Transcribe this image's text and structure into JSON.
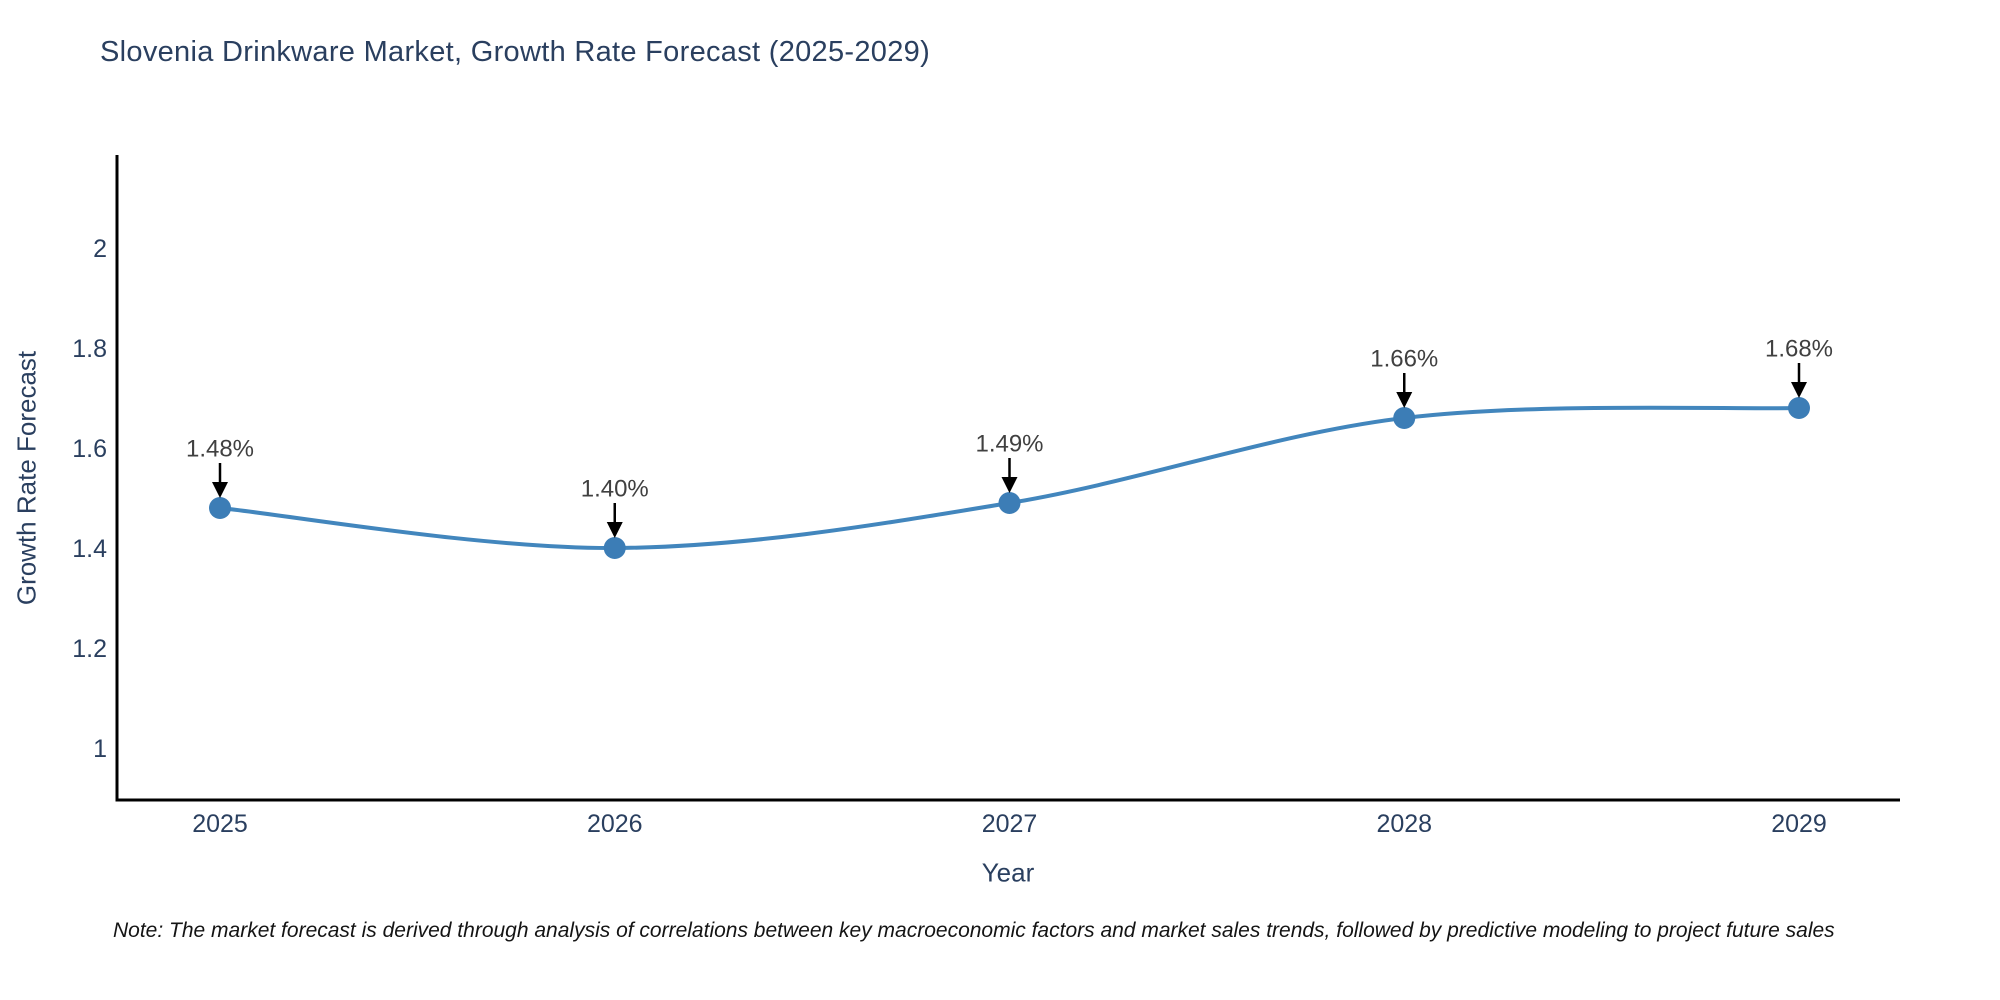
{
  "page": {
    "note": "Note: The market forecast is derived through analysis of correlations between key macroeconomic factors and market sales trends, followed by predictive modeling to project future sales"
  },
  "chart_data": {
    "type": "line",
    "title": "Slovenia Drinkware Market, Growth Rate Forecast (2025-2029)",
    "xlabel": "Year",
    "ylabel": "Growth Rate Forecast",
    "x": [
      "2025",
      "2026",
      "2027",
      "2028",
      "2029"
    ],
    "series": [
      {
        "name": "Growth Rate Forecast",
        "values": [
          1.48,
          1.4,
          1.49,
          1.66,
          1.68
        ]
      }
    ],
    "point_labels": [
      "1.48%",
      "1.40%",
      "1.49%",
      "1.66%",
      "1.68%"
    ],
    "y_ticks": [
      {
        "value": 2.0,
        "label": "2"
      },
      {
        "value": 1.8,
        "label": "1.8"
      },
      {
        "value": 1.6,
        "label": "1.6"
      },
      {
        "value": 1.4,
        "label": "1.4"
      },
      {
        "value": 1.2,
        "label": "1.2"
      },
      {
        "value": 1.0,
        "label": "1"
      }
    ],
    "ylim": [
      0.9,
      2.19
    ],
    "grid": false,
    "legend": "none",
    "line_shape": "spline",
    "annotation_style": "text-with-down-arrow",
    "colors": {
      "line": "#4286bd",
      "marker": "#3c7db6",
      "arrow": "#000000",
      "axis": "#000000",
      "tick_text": "#2a3f5f",
      "title_text": "#2a3f5f",
      "point_label_text": "#404040"
    }
  }
}
